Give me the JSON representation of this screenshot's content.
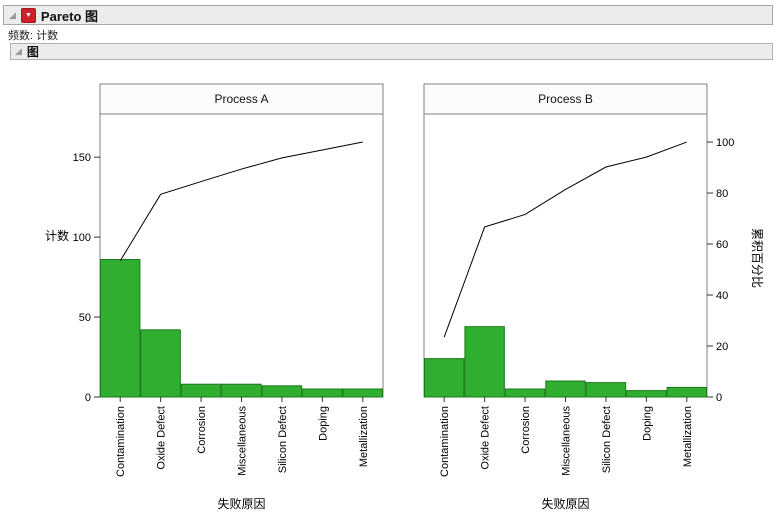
{
  "header": {
    "title": "Pareto 图",
    "freq_label": "频数: 计数",
    "group_label": "图"
  },
  "chart_data": {
    "type": "bar",
    "subtype": "pareto with cumulative line, two panels",
    "categories": [
      "Contamination",
      "Oxide Defect",
      "Corrosion",
      "Miscellaneous",
      "Silicon Defect",
      "Doping",
      "Metallization"
    ],
    "panels": [
      {
        "title": "Process A",
        "counts": [
          86,
          42,
          8,
          8,
          7,
          5,
          5
        ],
        "cum_pct": [
          53.4,
          79.5,
          84.5,
          89.4,
          93.8,
          96.9,
          100
        ]
      },
      {
        "title": "Process B",
        "counts": [
          24,
          44,
          5,
          10,
          9,
          4,
          6
        ],
        "cum_pct": [
          23.5,
          66.7,
          71.6,
          81.4,
          90.2,
          94.1,
          100
        ]
      }
    ],
    "left_axis": {
      "label": "计数",
      "ticks": [
        0,
        50,
        100,
        150
      ],
      "max": 177
    },
    "right_axis": {
      "label": "累积百分比",
      "ticks": [
        0,
        20,
        40,
        60,
        80,
        100
      ],
      "max": 111
    },
    "xlabel": "失败原因",
    "legend": "none",
    "grid": "off",
    "bar_color": "#2fae2f",
    "bar_stroke": "#1b7a1b",
    "line_color": "#000000",
    "frame_color": "#808080"
  }
}
